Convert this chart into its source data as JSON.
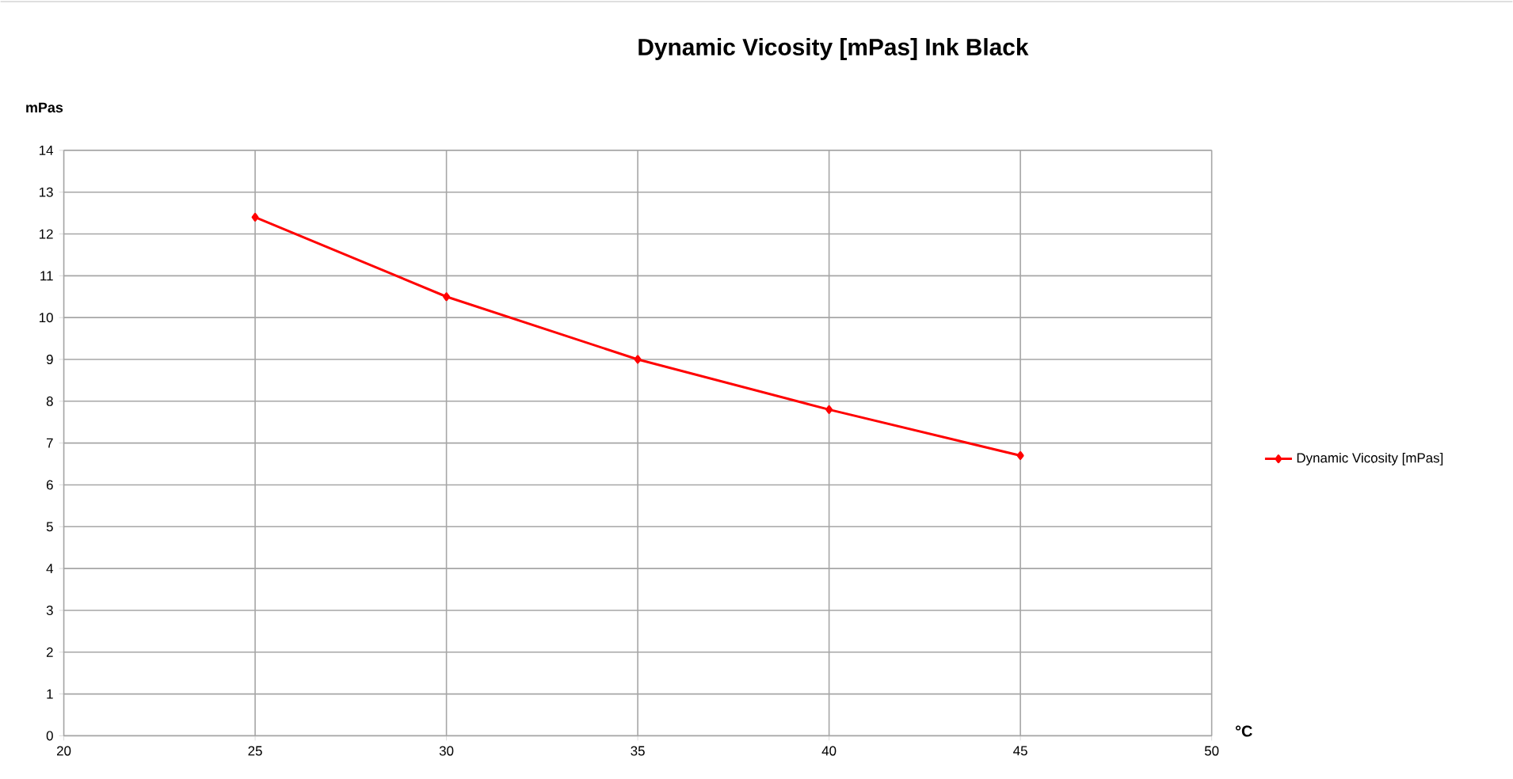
{
  "chart_data": {
    "type": "line",
    "title": "Dynamic Vicosity [mPas] Ink Black",
    "xlabel": "°C",
    "ylabel": "mPas",
    "x": [
      25,
      30,
      35,
      40,
      45
    ],
    "series": [
      {
        "name": "Dynamic Vicosity [mPas]",
        "color": "#ff0000",
        "values": [
          12.4,
          10.5,
          9.0,
          7.8,
          6.7
        ]
      }
    ],
    "xlim": [
      20,
      50
    ],
    "xticks": [
      20,
      25,
      30,
      35,
      40,
      45,
      50
    ],
    "ylim": [
      0,
      14
    ],
    "yticks": [
      0,
      1,
      2,
      3,
      4,
      5,
      6,
      7,
      8,
      9,
      10,
      11,
      12,
      13,
      14
    ],
    "grid": true,
    "legend": "right",
    "marker": "diamond",
    "line_style": "solid"
  }
}
